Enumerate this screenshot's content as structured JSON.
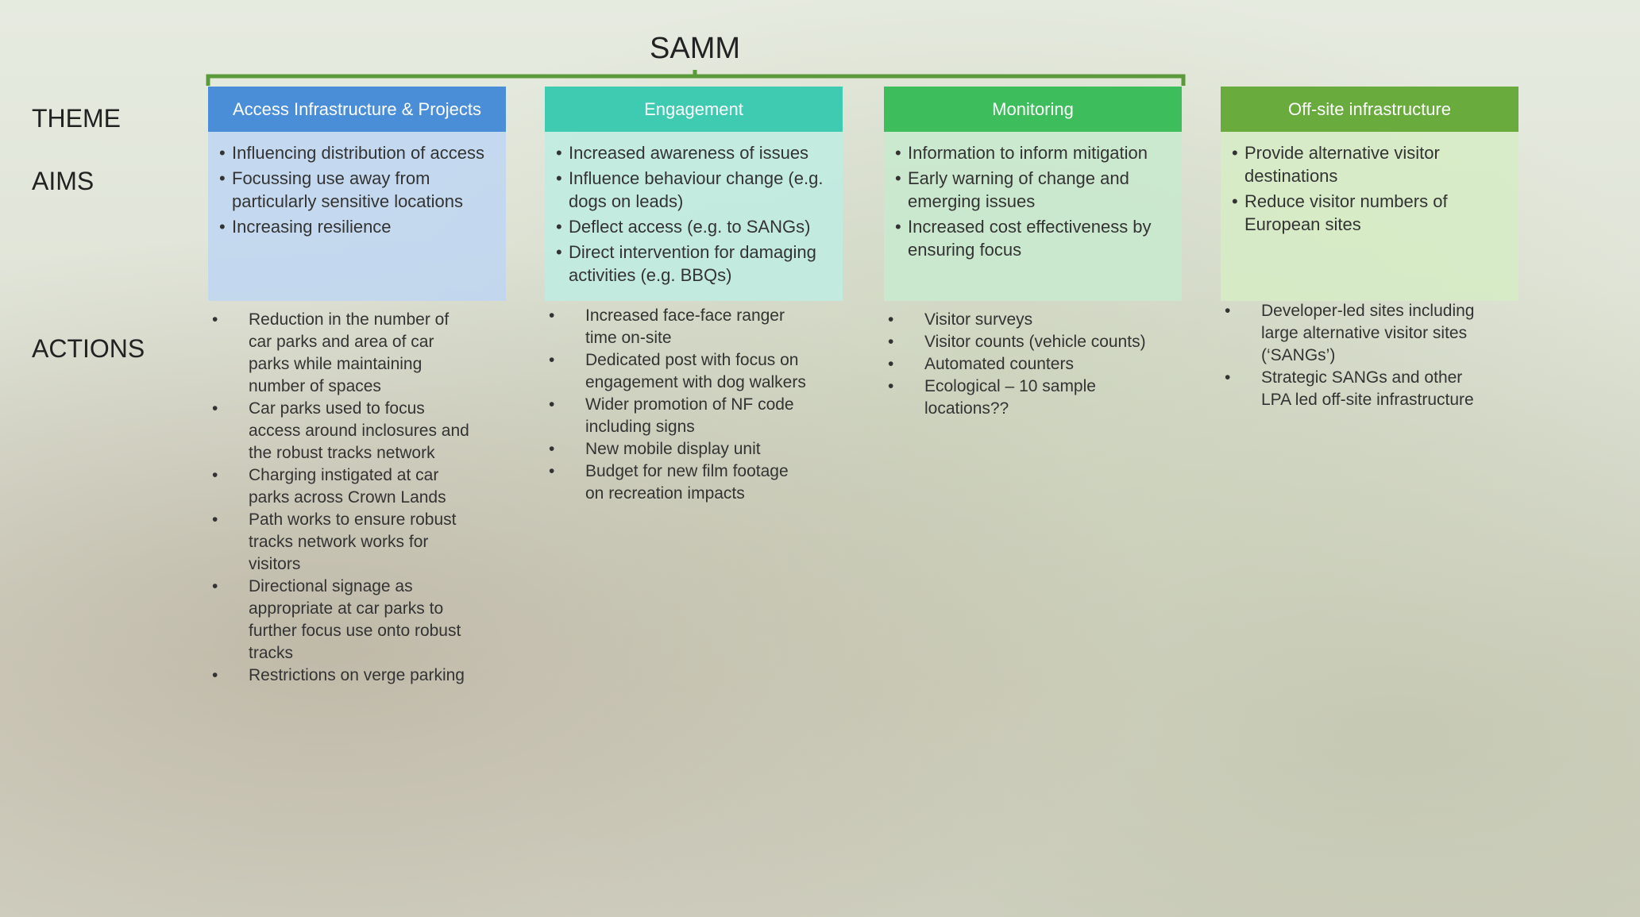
{
  "title": "SAMM",
  "row_labels": [
    "THEME",
    "AIMS",
    "ACTIONS"
  ],
  "columns": [
    {
      "theme": "Access Infrastructure & Projects",
      "aims": [
        "Influencing distribution of access",
        "Focussing use away from particularly sensitive locations",
        "Increasing resilience"
      ],
      "actions": [
        "Reduction in the number of car parks and area of car parks while maintaining number of spaces",
        "Car parks used to focus access around inclosures and the robust tracks network",
        "Charging instigated at car parks across Crown Lands",
        "Path works to ensure robust tracks network works for visitors",
        "Directional signage as appropriate at car parks to further focus use onto robust tracks",
        "Restrictions on verge parking"
      ]
    },
    {
      "theme": "Engagement",
      "aims": [
        "Increased awareness of issues",
        "Influence behaviour change (e.g. dogs on leads)",
        "Deflect access (e.g. to SANGs)",
        "Direct intervention for damaging activities (e.g. BBQs)"
      ],
      "actions": [
        "Increased face-face ranger time on-site",
        "Dedicated post with focus on engagement with dog walkers",
        "Wider promotion of NF code including signs",
        "New mobile display unit",
        "Budget for new film footage on recreation impacts"
      ]
    },
    {
      "theme": "Monitoring",
      "aims": [
        "Information to inform mitigation",
        "Early warning of change and emerging issues",
        "Increased cost effectiveness by ensuring focus"
      ],
      "actions": [
        "Visitor surveys",
        "Visitor counts (vehicle counts)",
        "Automated counters",
        "Ecological – 10 sample locations??"
      ]
    },
    {
      "theme": "Off-site infrastructure",
      "aims": [
        "Provide alternative visitor destinations",
        "Reduce visitor numbers of European sites"
      ],
      "actions": [
        "Developer-led sites including large alternative visitor sites (‘SANGs’)",
        "Strategic SANGs and other LPA led off-site infrastructure"
      ]
    }
  ]
}
